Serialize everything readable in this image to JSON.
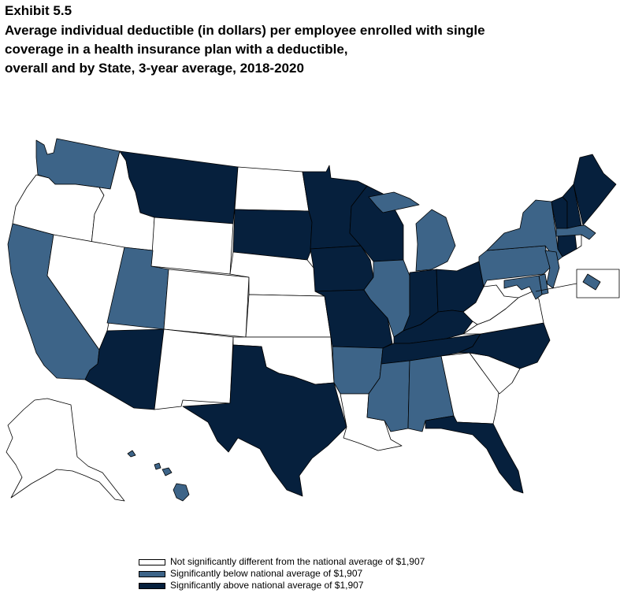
{
  "exhibit": "Exhibit 5.5",
  "title_lines": [
    "Average individual deductible (in dollars) per employee enrolled with single",
    "coverage in a health insurance plan with a deductible,",
    "overall and by State, 3-year average, 2018-2020"
  ],
  "colors": {
    "not_different": "#ffffff",
    "below": "#3d6488",
    "above": "#06203d",
    "stroke": "#000000"
  },
  "legend": [
    {
      "key": "not_different",
      "label": "Not significantly different from the national average of $1,907"
    },
    {
      "key": "below",
      "label": "Significantly below national average of $1,907"
    },
    {
      "key": "above",
      "label": "Significantly above national average of $1,907"
    }
  ],
  "states": {
    "WA": "below",
    "OR": "not_different",
    "CA": "below",
    "ID": "not_different",
    "NV": "not_different",
    "MT": "above",
    "WY": "not_different",
    "UT": "below",
    "AZ": "above",
    "CO": "not_different",
    "NM": "not_different",
    "ND": "not_different",
    "SD": "above",
    "NE": "not_different",
    "KS": "not_different",
    "OK": "not_different",
    "TX": "above",
    "MN": "above",
    "IA": "above",
    "MO": "above",
    "AR": "below",
    "LA": "not_different",
    "WI": "above",
    "IL": "below",
    "MI": "below",
    "IN": "above",
    "OH": "above",
    "KY": "above",
    "TN": "above",
    "MS": "below",
    "AL": "below",
    "GA": "not_different",
    "FL": "above",
    "SC": "not_different",
    "NC": "above",
    "VA": "not_different",
    "WV": "not_different",
    "PA": "below",
    "NY": "below",
    "NJ": "below",
    "DE": "below",
    "MD": "below",
    "CT": "above",
    "RI": "not_different",
    "MA": "below",
    "VT": "above",
    "NH": "above",
    "ME": "above",
    "AK": "not_different",
    "HI": "below",
    "DC": "below"
  }
}
